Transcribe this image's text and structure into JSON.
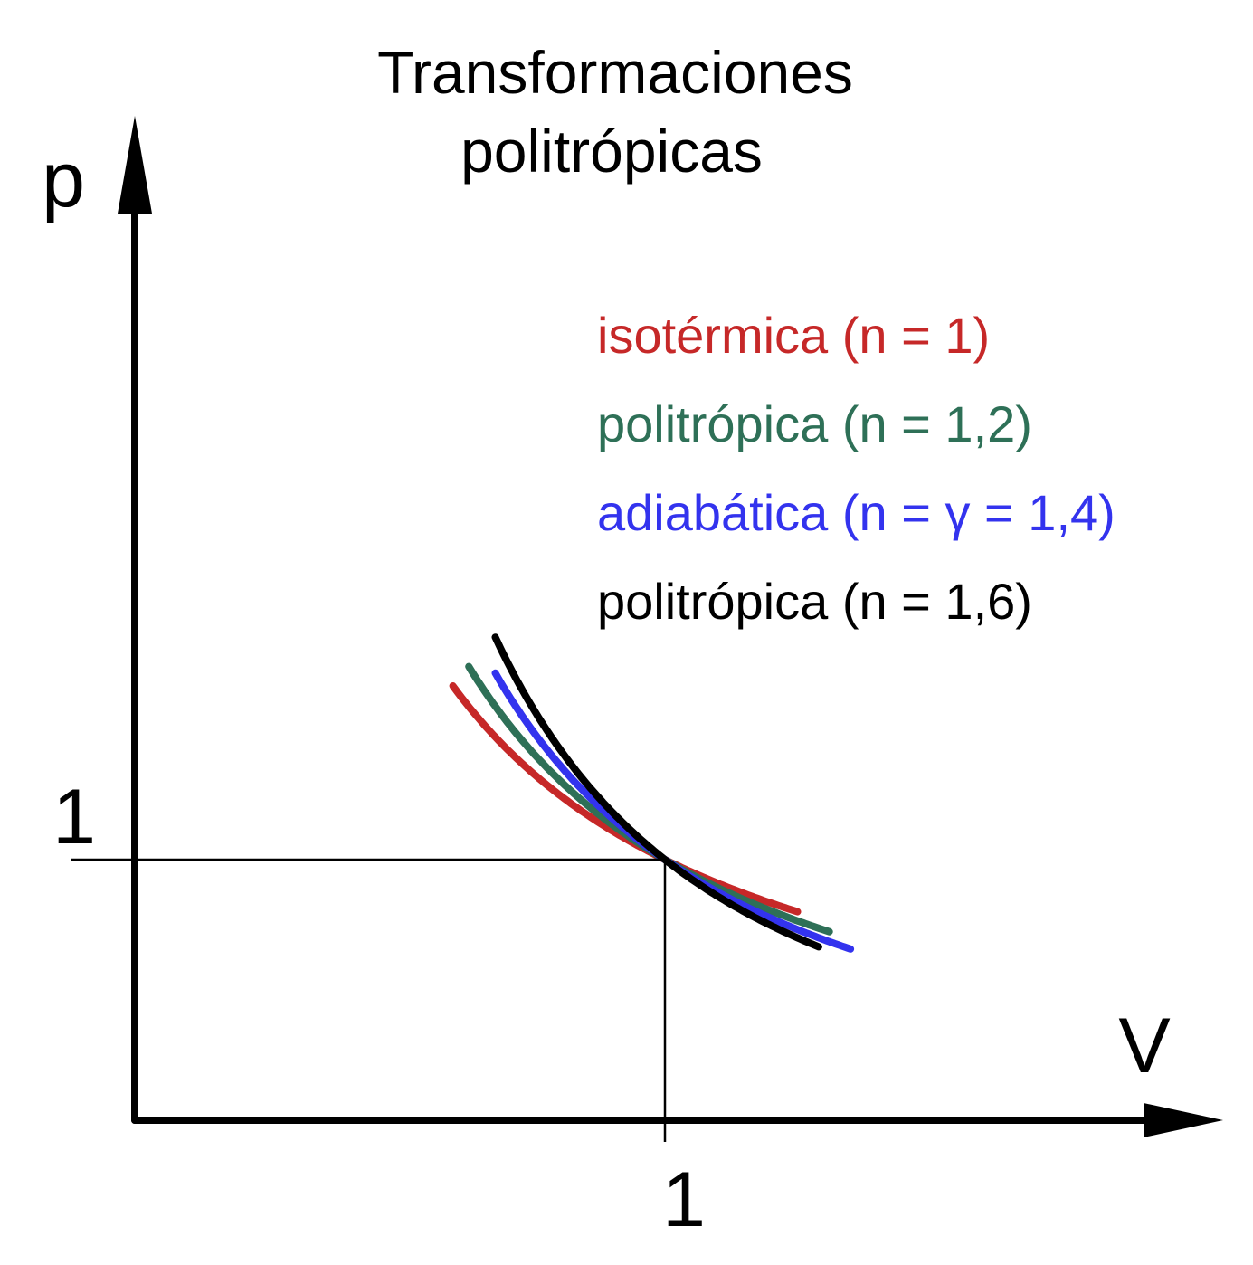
{
  "chart_data": {
    "type": "line",
    "title": [
      "Transformaciones",
      "politrópicas"
    ],
    "xlabel": "V",
    "ylabel": "p",
    "x_ticks": [
      {
        "value": 1,
        "label": "1"
      }
    ],
    "y_ticks": [
      {
        "value": 1,
        "label": "1"
      }
    ],
    "xlim": [
      0,
      2.1
    ],
    "ylim": [
      0,
      3.6
    ],
    "grid": false,
    "legend_position": "right",
    "series": [
      {
        "name": "isotérmica (n = 1)",
        "n": 1.0,
        "color": "#c62828",
        "x_range": [
          0.6,
          1.25
        ]
      },
      {
        "name": "politrópica (n = 1,2)",
        "n": 1.2,
        "color": "#2e7057",
        "x_range": [
          0.63,
          1.31
        ]
      },
      {
        "name": "adiabática (n = γ = 1,4)",
        "n": 1.4,
        "color": "#3333ee",
        "x_range": [
          0.68,
          1.35
        ]
      },
      {
        "name": "politrópica (n = 1,6)",
        "n": 1.6,
        "color": "#000000",
        "x_range": [
          0.68,
          1.29
        ]
      }
    ]
  }
}
